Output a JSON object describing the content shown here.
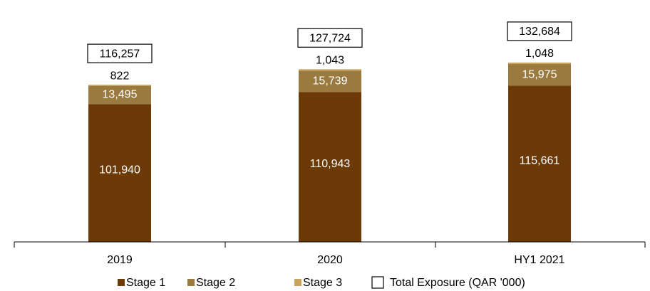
{
  "chart_data": {
    "type": "bar",
    "stacked": true,
    "categories": [
      "2019",
      "2020",
      "HY1 2021"
    ],
    "series": [
      {
        "name": "Stage 1",
        "values": [
          101940,
          110943,
          115661
        ],
        "labels": [
          "101,940",
          "110,943",
          "115,661"
        ],
        "color": "#6b3a06"
      },
      {
        "name": "Stage 2",
        "values": [
          13495,
          15739,
          15975
        ],
        "labels": [
          "13,495",
          "15,739",
          "15,975"
        ],
        "color": "#9b7a40"
      },
      {
        "name": "Stage 3",
        "values": [
          822,
          1043,
          1048
        ],
        "labels": [
          "822",
          "1,043",
          "1,048"
        ],
        "color": "#c9a45c"
      }
    ],
    "totals": {
      "name": "Total Exposure (QAR '000)",
      "values": [
        116257,
        127724,
        132684
      ],
      "labels": [
        "116,257",
        "127,724",
        "132,684"
      ]
    },
    "title": "",
    "xlabel": "",
    "ylabel": "",
    "ylim": [
      0,
      132684
    ],
    "grid": false,
    "legend": "bottom"
  }
}
